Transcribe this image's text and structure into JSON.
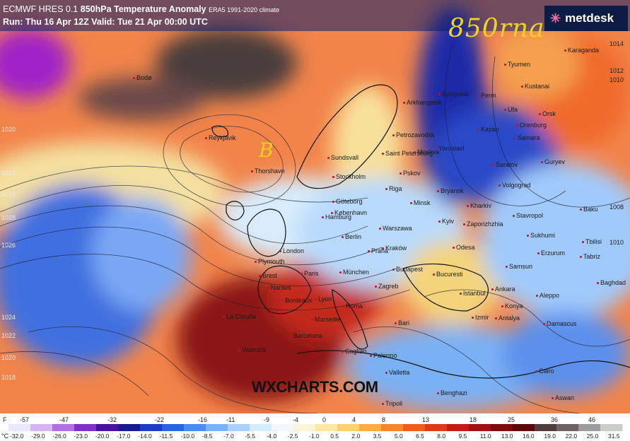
{
  "header": {
    "model": "ECMWF HRES 0.1",
    "product": "850hPa Temperature Anomaly",
    "climate": "ERA5 1991-2020 climate",
    "run_line": "Run: Thu 16 Apr 12Z Valid: Tue 21 Apr 00:00 UTC"
  },
  "brand": {
    "name": "metdesk",
    "icon": "star-logo-icon"
  },
  "annotations": {
    "top_right": "850rna",
    "low_marker": "B"
  },
  "watermark": "WXCHARTS.COM",
  "isobars_left": [
    "1020",
    "1022",
    "1026",
    "1028",
    "1026",
    "1024",
    "1022",
    "1020",
    "1018"
  ],
  "isobars_right": [
    "1014",
    "1012",
    "1010",
    "1008",
    "1010"
  ],
  "cities": [
    "Bodø",
    "Reykjavik",
    "Thorshavn",
    "Sundsvall",
    "Arkhangelsk",
    "Petrozavodsk",
    "Saint Petersburg",
    "Stockholm",
    "Göteborg",
    "København",
    "Riga",
    "Pskov",
    "Minsk",
    "Warszawa",
    "Berlin",
    "Hamburg",
    "London",
    "Plymouth",
    "Brest",
    "Paris",
    "Nantes",
    "Bordeaux",
    "Lyon",
    "Marseille",
    "München",
    "Praha",
    "Kraków",
    "Budapest",
    "Bucuresti",
    "Zagreb",
    "Roma",
    "Bari",
    "Barcelona",
    "La Coruña",
    "Valencia",
    "Cagliari",
    "Palermo",
    "Valletta",
    "Istanbul",
    "Izmir",
    "Ankara",
    "Antalya",
    "Konya",
    "Aleppo",
    "Damascus",
    "Baghdad",
    "Tripoli",
    "Benghazi",
    "Cairo",
    "Kyiv",
    "Kharkiv",
    "Zaporizhzhia",
    "Odesa",
    "Stavropol",
    "Volgograd",
    "Saratov",
    "Kazan",
    "Ufa",
    "Perm",
    "Orenburg",
    "Samara",
    "Orsk",
    "Kustanai",
    "Karaganda",
    "Tyumen",
    "Guryev",
    "Baku",
    "Tbilisi",
    "Sukhumi",
    "Samsun",
    "Erzurum",
    "Tabriz",
    "Syktyvkar",
    "Moskva",
    "Bryansk",
    "Yaroslavl",
    "Aswan"
  ],
  "colorbar": {
    "f_label": "F",
    "c_label": "°C",
    "f_ticks": [
      "-57",
      "-47",
      "-32",
      "-22",
      "-16",
      "-11",
      "-9",
      "-4",
      "0",
      "4",
      "8",
      "13",
      "18",
      "25",
      "36",
      "46"
    ],
    "c_ticks": [
      "-32.0",
      "-29.0",
      "-26.0",
      "-23.0",
      "-20.0",
      "-17.0",
      "-14.0",
      "-11.5",
      "-10.0",
      "-8.5",
      "-7.0",
      "-5.5",
      "-4.0",
      "-2.5",
      "-1.0",
      "0.5",
      "2.0",
      "3.5",
      "5.0",
      "6.5",
      "8.0",
      "9.5",
      "11.0",
      "13.0",
      "16.0",
      "19.0",
      "22.0",
      "25.0",
      "31.5"
    ],
    "colors": [
      "#e8e8ff",
      "#d6b4f4",
      "#b070e4",
      "#8030c8",
      "#4a10a0",
      "#1a1a90",
      "#1c3cc4",
      "#2a64e0",
      "#4a8cf0",
      "#78b2f8",
      "#a8d2fc",
      "#d4ecfc",
      "#f4f8fc",
      "#fcf4d8",
      "#fce8a4",
      "#fcd070",
      "#fcac40",
      "#f8842c",
      "#f05c20",
      "#e03818",
      "#c41c14",
      "#a01010",
      "#7c0c0c",
      "#5c0808",
      "#503c3c",
      "#6c6464",
      "#9c9c9c",
      "#cccccc"
    ]
  }
}
